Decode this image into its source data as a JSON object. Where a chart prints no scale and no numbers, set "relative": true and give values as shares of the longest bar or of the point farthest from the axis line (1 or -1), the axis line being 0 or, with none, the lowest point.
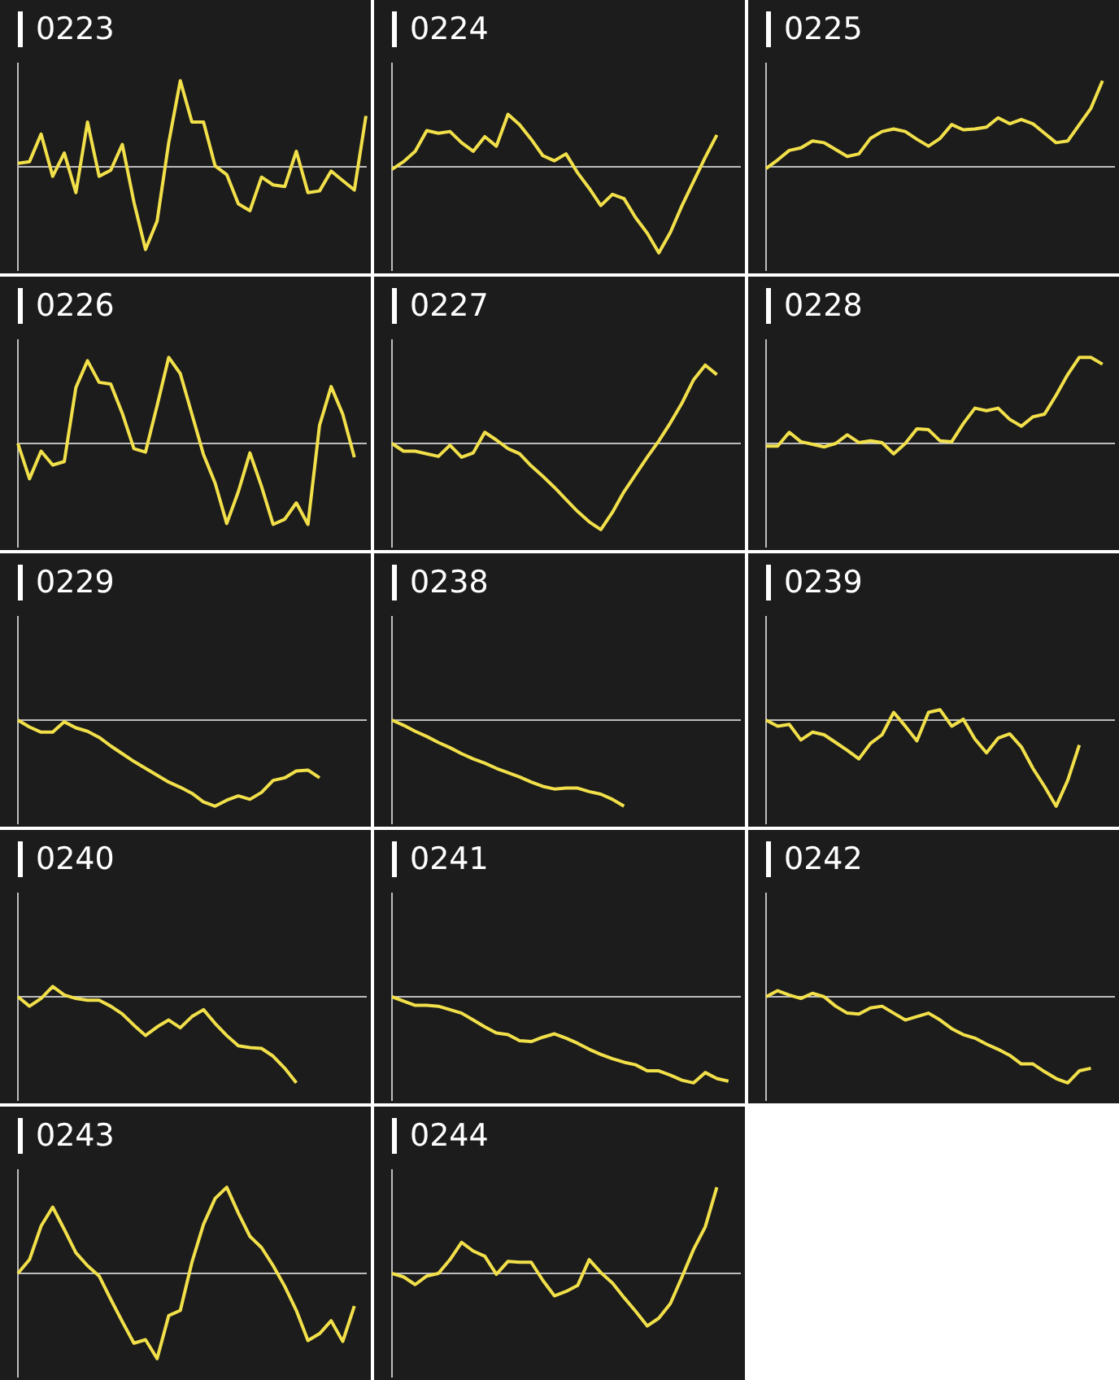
{
  "chart_data": [
    {
      "type": "line",
      "title": "0223",
      "relative": true,
      "color": "#f2e04a",
      "categories": [
        null,
        null,
        null,
        null,
        null,
        null,
        null,
        null,
        null,
        null,
        null,
        null,
        null,
        null,
        null,
        null,
        null,
        null,
        null,
        null,
        null,
        null,
        null,
        null,
        null,
        null,
        null,
        null,
        null,
        null,
        null
      ],
      "values": [
        0.04,
        0.06,
        0.38,
        -0.11,
        0.16,
        -0.3,
        0.52,
        -0.11,
        -0.04,
        0.26,
        -0.41,
        -0.96,
        -0.63,
        0.28,
        1,
        0.52,
        0.52,
        0.01,
        -0.09,
        -0.43,
        -0.51,
        -0.12,
        -0.21,
        -0.23,
        0.18,
        -0.3,
        -0.28,
        -0.05,
        -0.16,
        -0.27,
        0.59
      ]
    },
    {
      "type": "line",
      "title": "0224",
      "relative": true,
      "color": "#f2e04a",
      "categories": [
        null,
        null,
        null,
        null,
        null,
        null,
        null,
        null,
        null,
        null,
        null,
        null,
        null,
        null,
        null,
        null,
        null,
        null,
        null,
        null,
        null,
        null,
        null,
        null,
        null,
        null,
        null,
        null,
        null,
        null,
        null
      ],
      "values": [
        -0.03,
        0.06,
        0.18,
        0.42,
        0.39,
        0.41,
        0.28,
        0.18,
        0.35,
        0.24,
        0.61,
        0.49,
        0.32,
        0.13,
        0.07,
        0.15,
        -0.07,
        -0.25,
        -0.45,
        -0.32,
        -0.37,
        -0.59,
        -0.77,
        -1,
        -0.76,
        -0.45,
        -0.17,
        0.11,
        0.37,
        null,
        null
      ]
    },
    {
      "type": "line",
      "title": "0225",
      "relative": true,
      "color": "#f2e04a",
      "categories": [
        null,
        null,
        null,
        null,
        null,
        null,
        null,
        null,
        null,
        null,
        null,
        null,
        null,
        null,
        null,
        null,
        null,
        null,
        null,
        null,
        null,
        null,
        null,
        null,
        null,
        null,
        null,
        null,
        null,
        null,
        null
      ],
      "values": [
        -0.02,
        0.08,
        0.19,
        0.22,
        0.3,
        0.28,
        0.2,
        0.12,
        0.15,
        0.33,
        0.41,
        0.44,
        0.41,
        0.32,
        0.24,
        0.33,
        0.49,
        0.43,
        0.44,
        0.46,
        0.57,
        0.5,
        0.55,
        0.5,
        0.39,
        0.28,
        0.3,
        0.49,
        0.68,
        1,
        null
      ]
    },
    {
      "type": "line",
      "title": "0226",
      "relative": true,
      "color": "#f2e04a",
      "categories": [
        null,
        null,
        null,
        null,
        null,
        null,
        null,
        null,
        null,
        null,
        null,
        null,
        null,
        null,
        null,
        null,
        null,
        null,
        null,
        null,
        null,
        null,
        null,
        null,
        null,
        null,
        null,
        null,
        null,
        null,
        null
      ],
      "values": [
        0,
        -0.41,
        -0.09,
        -0.25,
        -0.21,
        0.65,
        0.96,
        0.71,
        0.69,
        0.35,
        -0.06,
        -0.1,
        0.44,
        1,
        0.81,
        0.34,
        -0.13,
        -0.46,
        -0.93,
        -0.56,
        -0.11,
        -0.5,
        -0.94,
        -0.88,
        -0.69,
        -0.94,
        0.21,
        0.66,
        0.34,
        -0.16,
        null
      ]
    },
    {
      "type": "line",
      "title": "0227",
      "relative": true,
      "color": "#f2e04a",
      "categories": [
        null,
        null,
        null,
        null,
        null,
        null,
        null,
        null,
        null,
        null,
        null,
        null,
        null,
        null,
        null,
        null,
        null,
        null,
        null,
        null,
        null,
        null,
        null,
        null,
        null,
        null,
        null,
        null,
        null,
        null,
        null
      ],
      "values": [
        0,
        -0.09,
        -0.09,
        -0.12,
        -0.15,
        -0.02,
        -0.16,
        -0.11,
        0.13,
        0.04,
        -0.06,
        -0.12,
        -0.26,
        -0.38,
        -0.51,
        -0.65,
        -0.79,
        -0.91,
        -1,
        -0.8,
        -0.56,
        -0.36,
        -0.16,
        0.03,
        0.24,
        0.47,
        0.74,
        0.91,
        0.8,
        null,
        null
      ]
    },
    {
      "type": "line",
      "title": "0228",
      "relative": true,
      "color": "#f2e04a",
      "categories": [
        null,
        null,
        null,
        null,
        null,
        null,
        null,
        null,
        null,
        null,
        null,
        null,
        null,
        null,
        null,
        null,
        null,
        null,
        null,
        null,
        null,
        null,
        null,
        null,
        null,
        null,
        null,
        null,
        null,
        null,
        null
      ],
      "values": [
        -0.03,
        -0.03,
        0.13,
        0.02,
        -0.01,
        -0.04,
        0,
        0.1,
        0.01,
        0.03,
        0.01,
        -0.12,
        0,
        0.17,
        0.16,
        0.03,
        0.02,
        0.23,
        0.41,
        0.38,
        0.41,
        0.28,
        0.2,
        0.31,
        0.34,
        0.56,
        0.8,
        1,
        1,
        0.92,
        null
      ]
    },
    {
      "type": "line",
      "title": "0229",
      "relative": true,
      "color": "#f2e04a",
      "categories": [
        null,
        null,
        null,
        null,
        null,
        null,
        null,
        null,
        null,
        null,
        null,
        null,
        null,
        null,
        null,
        null,
        null,
        null,
        null,
        null,
        null,
        null,
        null,
        null,
        null,
        null,
        null,
        null,
        null,
        null,
        null
      ],
      "values": [
        0,
        -0.08,
        -0.14,
        -0.14,
        -0.02,
        -0.09,
        -0.13,
        -0.2,
        -0.3,
        -0.39,
        -0.48,
        -0.56,
        -0.64,
        -0.72,
        -0.78,
        -0.85,
        -0.95,
        -1,
        -0.93,
        -0.88,
        -0.92,
        -0.84,
        -0.7,
        -0.67,
        -0.59,
        -0.58,
        -0.67,
        null,
        null,
        null,
        null
      ]
    },
    {
      "type": "line",
      "title": "0238",
      "relative": true,
      "color": "#f2e04a",
      "categories": [
        null,
        null,
        null,
        null,
        null,
        null,
        null,
        null,
        null,
        null,
        null,
        null,
        null,
        null,
        null,
        null,
        null,
        null,
        null,
        null,
        null,
        null,
        null,
        null,
        null,
        null,
        null,
        null,
        null,
        null,
        null
      ],
      "values": [
        0,
        -0.06,
        -0.13,
        -0.19,
        -0.26,
        -0.32,
        -0.39,
        -0.45,
        -0.5,
        -0.56,
        -0.61,
        -0.66,
        -0.72,
        -0.77,
        -0.8,
        -0.79,
        -0.79,
        -0.83,
        -0.86,
        -0.92,
        -1,
        null,
        null,
        null,
        null,
        null,
        null,
        null,
        null,
        null,
        null
      ]
    },
    {
      "type": "line",
      "title": "0239",
      "relative": true,
      "color": "#f2e04a",
      "categories": [
        null,
        null,
        null,
        null,
        null,
        null,
        null,
        null,
        null,
        null,
        null,
        null,
        null,
        null,
        null,
        null,
        null,
        null,
        null,
        null,
        null,
        null,
        null,
        null,
        null,
        null,
        null,
        null,
        null,
        null,
        null
      ],
      "values": [
        0,
        -0.07,
        -0.05,
        -0.23,
        -0.14,
        -0.17,
        -0.26,
        -0.35,
        -0.45,
        -0.27,
        -0.17,
        0.09,
        -0.07,
        -0.24,
        0.09,
        0.12,
        -0.07,
        0.01,
        -0.22,
        -0.38,
        -0.21,
        -0.16,
        -0.31,
        -0.56,
        -0.77,
        -1,
        -0.7,
        -0.29,
        null,
        null,
        null
      ]
    },
    {
      "type": "line",
      "title": "0240",
      "relative": true,
      "color": "#f2e04a",
      "categories": [
        null,
        null,
        null,
        null,
        null,
        null,
        null,
        null,
        null,
        null,
        null,
        null,
        null,
        null,
        null,
        null,
        null,
        null,
        null,
        null,
        null,
        null,
        null,
        null,
        null,
        null,
        null,
        null,
        null,
        null,
        null
      ],
      "values": [
        0,
        -0.11,
        -0.02,
        0.12,
        0.02,
        -0.02,
        -0.04,
        -0.04,
        -0.11,
        -0.2,
        -0.33,
        -0.45,
        -0.35,
        -0.27,
        -0.36,
        -0.23,
        -0.15,
        -0.31,
        -0.45,
        -0.57,
        -0.59,
        -0.6,
        -0.69,
        -0.83,
        -1,
        null,
        null,
        null,
        null,
        null,
        null
      ]
    },
    {
      "type": "line",
      "title": "0241",
      "relative": true,
      "color": "#f2e04a",
      "categories": [
        null,
        null,
        null,
        null,
        null,
        null,
        null,
        null,
        null,
        null,
        null,
        null,
        null,
        null,
        null,
        null,
        null,
        null,
        null,
        null,
        null,
        null,
        null,
        null,
        null,
        null,
        null,
        null,
        null,
        null,
        null
      ],
      "values": [
        0,
        -0.05,
        -0.1,
        -0.1,
        -0.11,
        -0.15,
        -0.19,
        -0.27,
        -0.35,
        -0.42,
        -0.44,
        -0.51,
        -0.52,
        -0.47,
        -0.43,
        -0.48,
        -0.54,
        -0.61,
        -0.67,
        -0.72,
        -0.76,
        -0.79,
        -0.86,
        -0.86,
        -0.91,
        -0.97,
        -1,
        -0.88,
        -0.95,
        -0.98,
        null
      ]
    },
    {
      "type": "line",
      "title": "0242",
      "relative": true,
      "color": "#f2e04a",
      "categories": [
        null,
        null,
        null,
        null,
        null,
        null,
        null,
        null,
        null,
        null,
        null,
        null,
        null,
        null,
        null,
        null,
        null,
        null,
        null,
        null,
        null,
        null,
        null,
        null,
        null,
        null,
        null,
        null,
        null,
        null,
        null
      ],
      "values": [
        0,
        0.07,
        0.02,
        -0.02,
        0.04,
        0,
        -0.11,
        -0.19,
        -0.2,
        -0.13,
        -0.11,
        -0.19,
        -0.27,
        -0.23,
        -0.19,
        -0.27,
        -0.37,
        -0.44,
        -0.48,
        -0.55,
        -0.61,
        -0.68,
        -0.78,
        -0.78,
        -0.87,
        -0.95,
        -1,
        -0.86,
        -0.83,
        null,
        null
      ]
    },
    {
      "type": "line",
      "title": "0243",
      "relative": true,
      "color": "#f2e04a",
      "categories": [
        null,
        null,
        null,
        null,
        null,
        null,
        null,
        null,
        null,
        null,
        null,
        null,
        null,
        null,
        null,
        null,
        null,
        null,
        null,
        null,
        null,
        null,
        null,
        null,
        null,
        null,
        null,
        null,
        null,
        null,
        null
      ],
      "values": [
        0,
        0.16,
        0.55,
        0.77,
        0.51,
        0.24,
        0.09,
        -0.03,
        -0.3,
        -0.56,
        -0.81,
        -0.77,
        -0.99,
        -0.49,
        -0.43,
        0.13,
        0.57,
        0.87,
        1,
        0.7,
        0.43,
        0.3,
        0.09,
        -0.15,
        -0.43,
        -0.78,
        -0.7,
        -0.55,
        -0.79,
        -0.38,
        null
      ]
    },
    {
      "type": "line",
      "title": "0244",
      "relative": true,
      "color": "#f2e04a",
      "categories": [
        null,
        null,
        null,
        null,
        null,
        null,
        null,
        null,
        null,
        null,
        null,
        null,
        null,
        null,
        null,
        null,
        null,
        null,
        null,
        null,
        null,
        null,
        null,
        null,
        null,
        null,
        null,
        null,
        null,
        null,
        null
      ],
      "values": [
        0,
        -0.04,
        -0.13,
        -0.03,
        0,
        0.16,
        0.36,
        0.26,
        0.2,
        -0.01,
        0.14,
        0.13,
        0.13,
        -0.08,
        -0.26,
        -0.21,
        -0.14,
        0.16,
        0.01,
        -0.11,
        -0.28,
        -0.44,
        -0.61,
        -0.52,
        -0.35,
        -0.04,
        0.28,
        0.54,
        1,
        null,
        null
      ]
    }
  ]
}
